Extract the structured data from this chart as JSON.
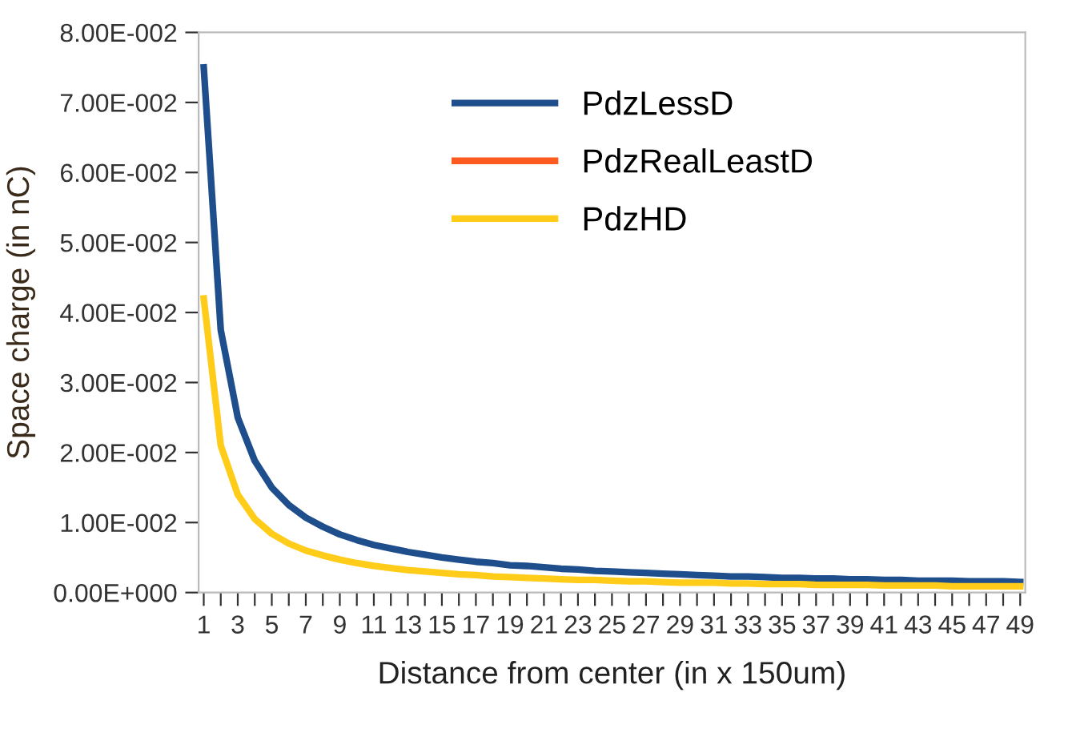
{
  "chart_data": {
    "type": "line",
    "xlabel": "Distance from center (in x 150um)",
    "ylabel": "Space charge (in nC)",
    "categories": [
      "1",
      null,
      "3",
      null,
      "5",
      null,
      "7",
      null,
      "9",
      null,
      "11",
      null,
      "13",
      null,
      "15",
      null,
      "17",
      null,
      "19",
      null,
      "21",
      null,
      "23",
      null,
      "25",
      null,
      "27",
      null,
      "29",
      null,
      "31",
      null,
      "33",
      null,
      "35",
      null,
      "37",
      null,
      "39",
      null,
      "41",
      null,
      "43",
      null,
      "45",
      null,
      "47",
      null,
      "49"
    ],
    "ylim": [
      0,
      0.08
    ],
    "yticks": [
      {
        "value": 0,
        "label": "0.00E+000"
      },
      {
        "value": 0.01,
        "label": "1.00E-002"
      },
      {
        "value": 0.02,
        "label": "2.00E-002"
      },
      {
        "value": 0.03,
        "label": "3.00E-002"
      },
      {
        "value": 0.04,
        "label": "4.00E-002"
      },
      {
        "value": 0.05,
        "label": "5.00E-002"
      },
      {
        "value": 0.06,
        "label": "6.00E-002"
      },
      {
        "value": 0.07,
        "label": "7.00E-002"
      },
      {
        "value": 0.08,
        "label": "8.00E-002"
      }
    ],
    "grid": false,
    "legend": "top right",
    "marker": "none",
    "line_style": "solid",
    "series": [
      {
        "name": "PdzLessD",
        "color": "#1f4e8c",
        "values": [
          0.075,
          0.0375,
          0.025,
          0.0188,
          0.015,
          0.0125,
          0.0107,
          0.0094,
          0.0083,
          0.0075,
          0.0068,
          0.0063,
          0.0058,
          0.0054,
          0.005,
          0.0047,
          0.0044,
          0.0042,
          0.0039,
          0.0038,
          0.0036,
          0.0034,
          0.0033,
          0.0031,
          0.003,
          0.0029,
          0.0028,
          0.0027,
          0.0026,
          0.0025,
          0.0024,
          0.0023,
          0.0023,
          0.0022,
          0.0021,
          0.0021,
          0.002,
          0.002,
          0.0019,
          0.0019,
          0.0018,
          0.0018,
          0.0017,
          0.0017,
          0.0017,
          0.0016,
          0.0016,
          0.0016,
          0.0015
        ]
      },
      {
        "name": "PdzRealLeastD",
        "color": "#ff5a1f",
        "values": [
          null,
          null,
          null,
          null,
          null,
          null,
          null,
          null,
          null,
          null,
          null,
          null,
          null,
          null,
          null,
          null,
          null,
          null,
          null,
          null,
          null,
          null,
          null,
          null,
          null,
          null,
          null,
          null,
          null,
          null,
          null,
          null,
          null,
          null,
          null,
          null,
          null,
          null,
          null,
          null,
          null,
          null,
          null,
          null,
          null,
          null,
          null,
          null,
          null
        ]
      },
      {
        "name": "PdzHD",
        "color": "#ffcc1a",
        "values": [
          0.042,
          0.021,
          0.014,
          0.0105,
          0.0084,
          0.007,
          0.006,
          0.0053,
          0.0047,
          0.0042,
          0.0038,
          0.0035,
          0.0032,
          0.003,
          0.0028,
          0.0026,
          0.0025,
          0.0023,
          0.0022,
          0.0021,
          0.002,
          0.0019,
          0.0018,
          0.0018,
          0.0017,
          0.0016,
          0.0016,
          0.0015,
          0.0014,
          0.0014,
          0.0014,
          0.0013,
          0.0013,
          0.0012,
          0.0012,
          0.0012,
          0.0011,
          0.0011,
          0.0011,
          0.0011,
          0.001,
          0.001,
          0.001,
          0.001,
          0.0009,
          0.0009,
          0.0009,
          0.0009,
          0.0009
        ]
      }
    ]
  }
}
